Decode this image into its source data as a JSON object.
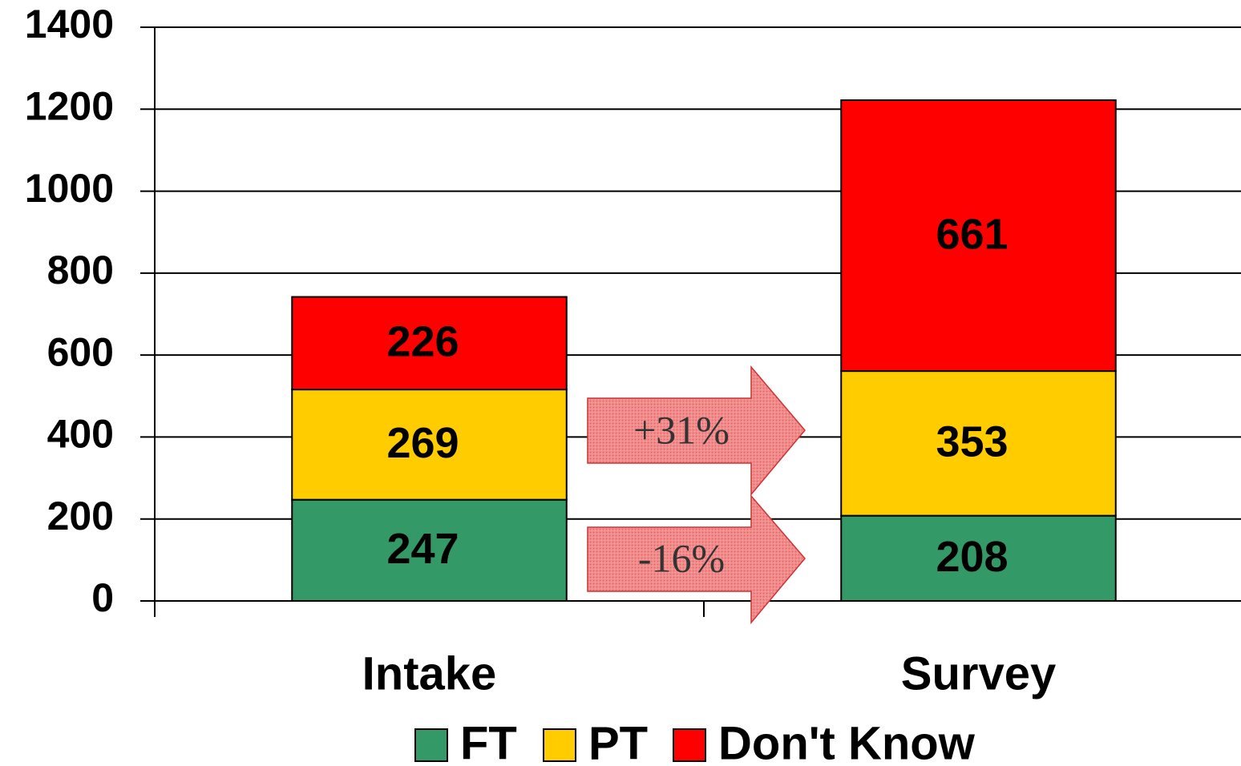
{
  "chart_data": {
    "type": "stacked_bar",
    "categories": [
      "Intake",
      "Survey"
    ],
    "series": [
      {
        "name": "FT",
        "color": "#339966",
        "values": [
          247,
          208
        ]
      },
      {
        "name": "PT",
        "color": "#ffcc00",
        "values": [
          269,
          353
        ]
      },
      {
        "name": "Don't Know",
        "color": "#ff0000",
        "values": [
          226,
          661
        ]
      }
    ],
    "ylim": [
      0,
      1400
    ],
    "yticks": [
      0,
      200,
      400,
      600,
      800,
      1000,
      1200,
      1400
    ],
    "grid": true,
    "legend": "bottom",
    "annotations": [
      "+31%",
      "-16%"
    ]
  }
}
